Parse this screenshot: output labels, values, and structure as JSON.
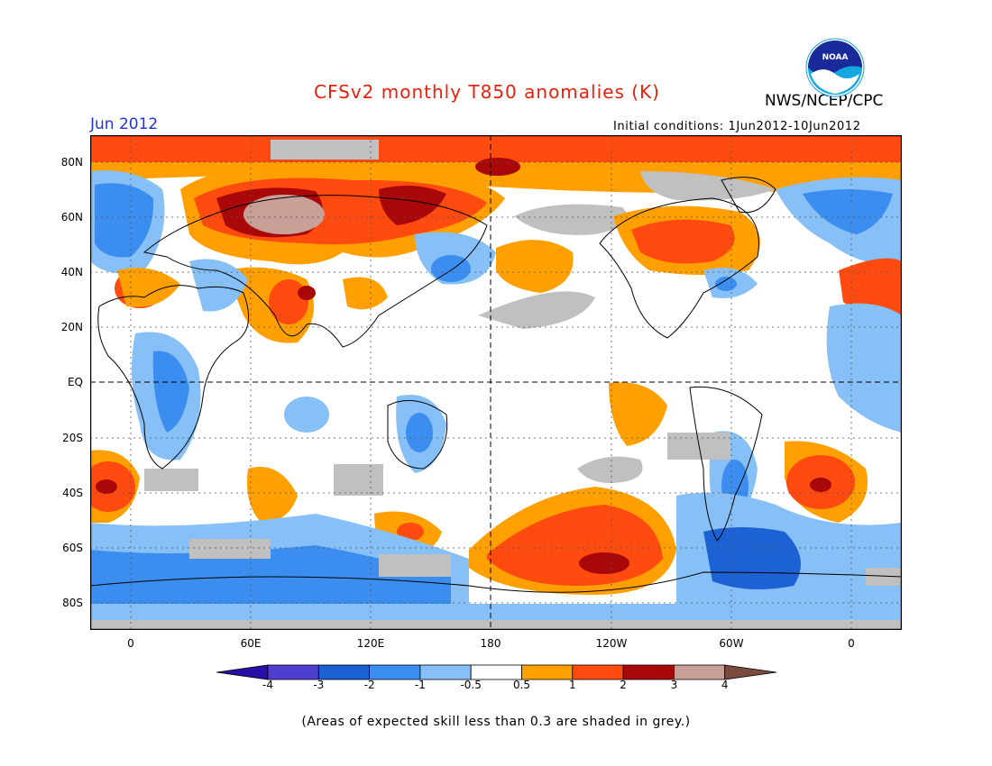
{
  "title": "CFSv2 monthly T850 anomalies (K)",
  "agency": "NWS/NCEP/CPC",
  "logo_text": "NOAA",
  "month": "Jun 2012",
  "initial_conditions": "Initial conditions: 1Jun2012-10Jun2012",
  "lat_labels": [
    "80N",
    "60N",
    "40N",
    "20N",
    "EQ",
    "20S",
    "40S",
    "60S",
    "80S"
  ],
  "lon_labels": [
    "0",
    "60E",
    "120E",
    "180",
    "120W",
    "60W",
    "0"
  ],
  "colorbar": {
    "labels": [
      "-4",
      "-3",
      "-2",
      "-1",
      "-0.5",
      "0.5",
      "1",
      "2",
      "3",
      "4"
    ],
    "colors": [
      "#2a0ea8",
      "#4f3fd0",
      "#1c62d4",
      "#3b8ef0",
      "#86c0f6",
      "#ffffff",
      "#ffa000",
      "#ff4a10",
      "#a80808",
      "#c8a098",
      "#7a4a3e"
    ]
  },
  "skill_shade_color": "#c0c0c0",
  "footnote": "(Areas of expected skill less than 0.3 are shaded in grey.)"
}
